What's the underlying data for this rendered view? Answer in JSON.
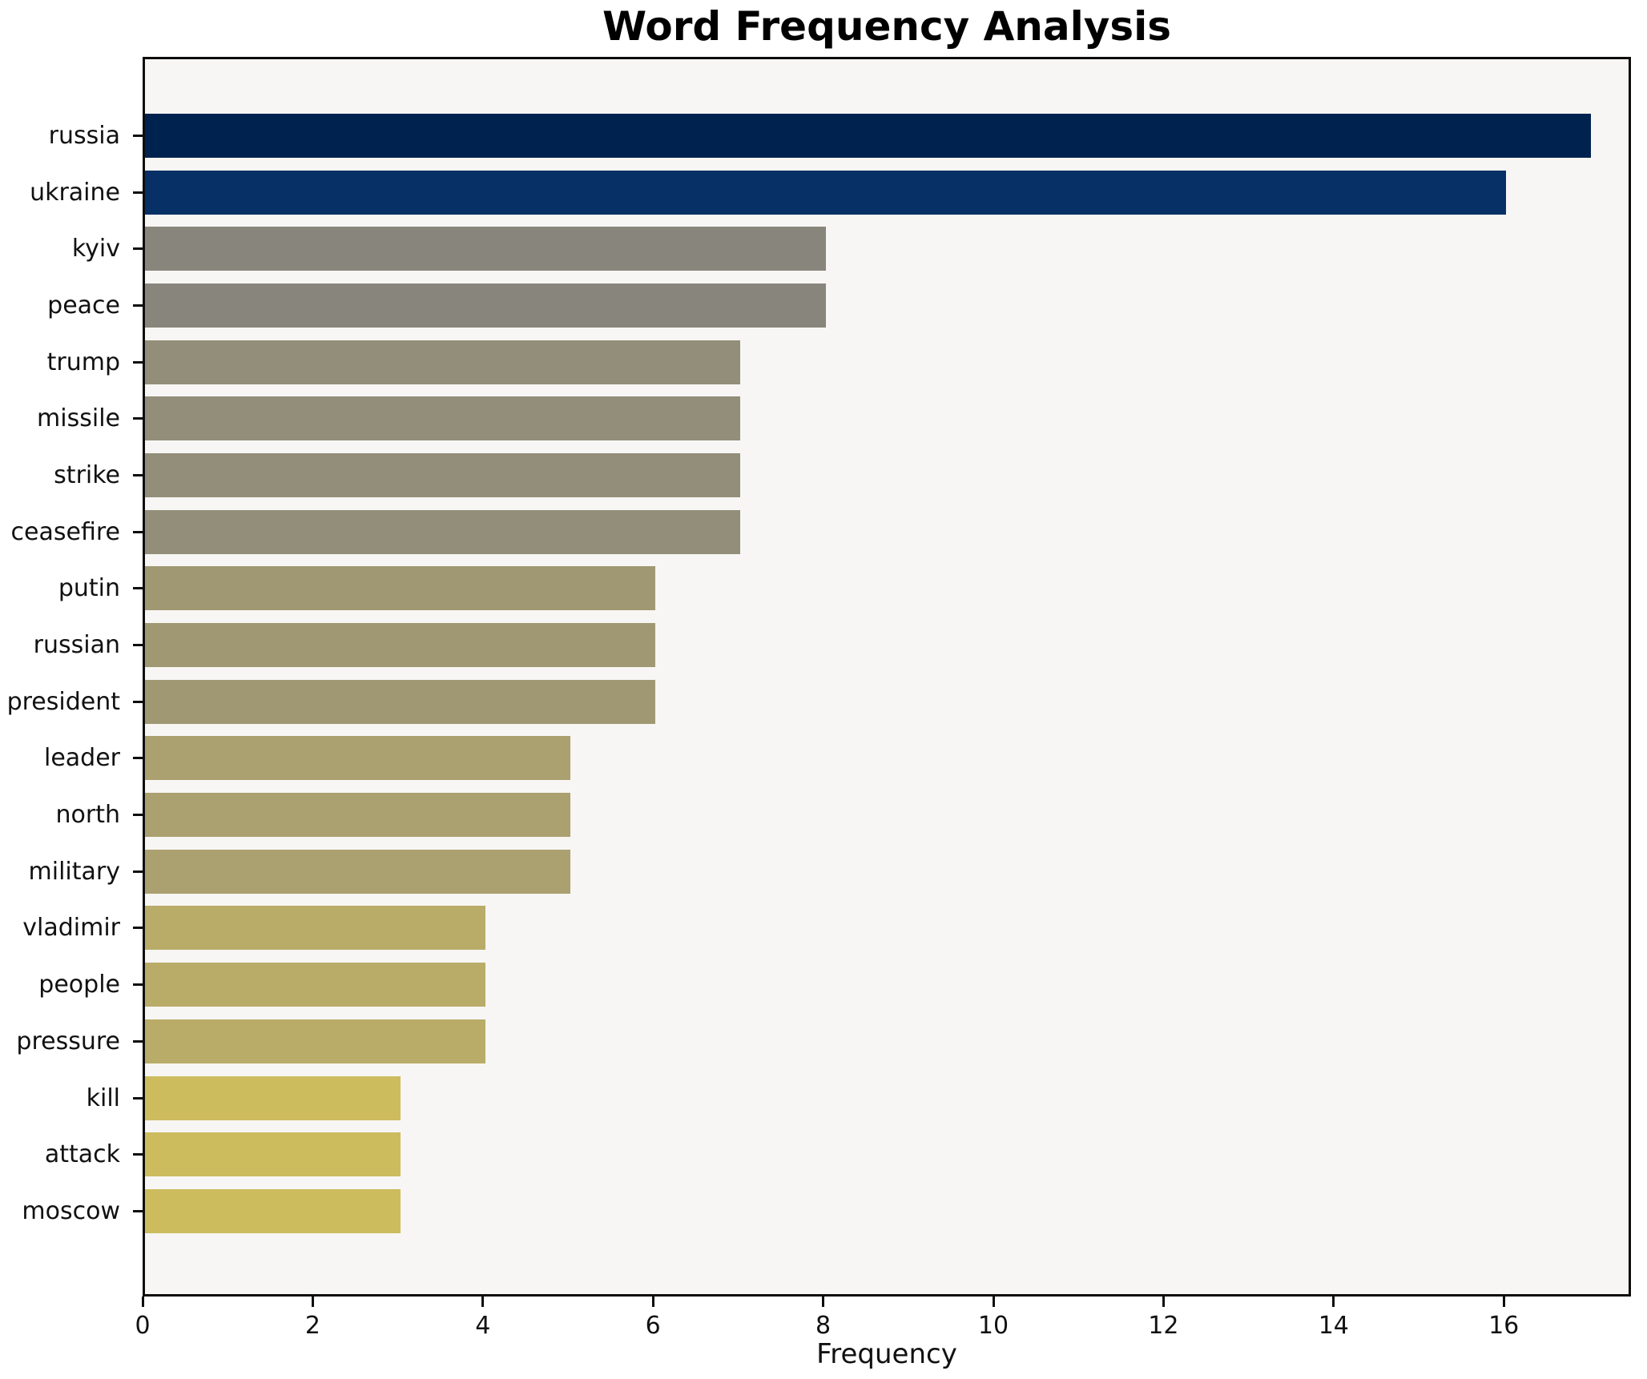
{
  "chart_data": {
    "type": "bar",
    "orientation": "horizontal",
    "title": "Word Frequency Analysis",
    "xlabel": "Frequency",
    "ylabel": "",
    "categories": [
      "russia",
      "ukraine",
      "kyiv",
      "peace",
      "trump",
      "missile",
      "strike",
      "ceasefire",
      "putin",
      "russian",
      "president",
      "leader",
      "north",
      "military",
      "vladimir",
      "people",
      "pressure",
      "kill",
      "attack",
      "moscow"
    ],
    "values": [
      17,
      16,
      8,
      8,
      7,
      7,
      7,
      7,
      6,
      6,
      6,
      5,
      5,
      5,
      4,
      4,
      4,
      3,
      3,
      3
    ],
    "bar_colors": [
      "#00224e",
      "#063066",
      "#88857c",
      "#88857c",
      "#938e7a",
      "#938e7a",
      "#938e7a",
      "#938e7a",
      "#a09873",
      "#a09873",
      "#a09873",
      "#aba06f",
      "#aba06f",
      "#aba06f",
      "#b9ac69",
      "#b9ac69",
      "#b9ac69",
      "#ccbc5e",
      "#ccbc5e",
      "#ccbc5e"
    ],
    "x_ticks": [
      0,
      2,
      4,
      6,
      8,
      10,
      12,
      14,
      16
    ],
    "xlim": [
      0,
      17.5
    ],
    "grid": false,
    "legend": "none",
    "plot_background": "#f7f6f4",
    "figure_background": "#ffffff",
    "spine_color": "#0d0d0d"
  }
}
